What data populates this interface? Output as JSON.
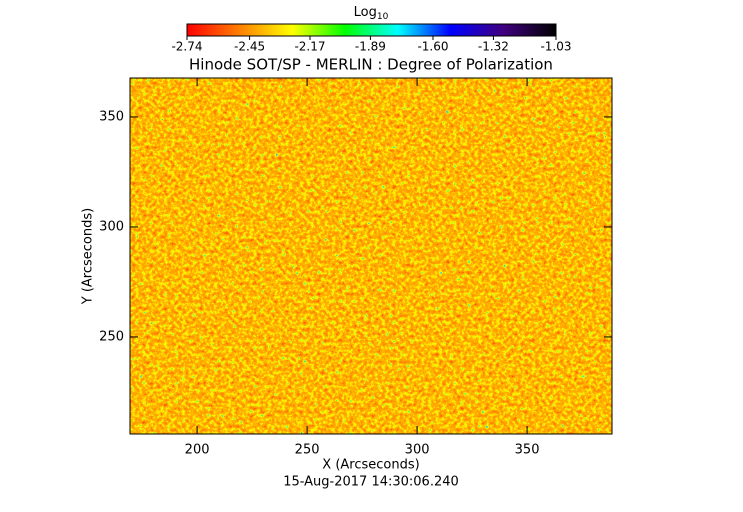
{
  "chart_data": {
    "type": "image",
    "title": "Hinode SOT/SP - MERLIN : Degree of Polarization",
    "x_label": "X (Arcseconds)",
    "y_label": "Y (Arcseconds)",
    "annotation": "15-Aug-2017 14:30:06.240",
    "xlim": [
      169.5,
      388.6
    ],
    "xticks": [
      200,
      250,
      300,
      350
    ],
    "ylim": [
      205.9,
      367.7
    ],
    "yticks": [
      250,
      300,
      350
    ],
    "colorbar": {
      "label": "Log",
      "label_subscript": "10",
      "lim": [
        -2.74,
        -1.03
      ],
      "ticks": [
        -2.74,
        -2.45,
        -2.17,
        -1.89,
        {
          "value": -1.6,
          "label": "-1.60"
        },
        -1.32,
        -1.03
      ],
      "colormap": [
        "#ff0000",
        "#ff8000",
        "#ffff00",
        "#00ff00",
        "#00ffff",
        "#0000ff",
        "#400080",
        "#000000"
      ]
    }
  }
}
